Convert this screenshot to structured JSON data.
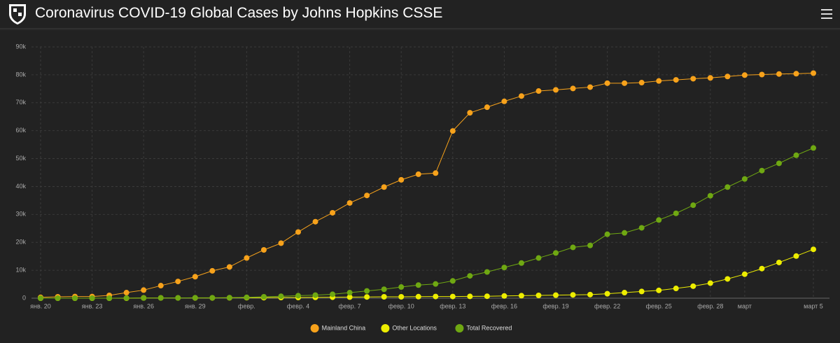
{
  "header": {
    "title": "Coronavirus COVID-19 Global Cases by Johns Hopkins CSSE"
  },
  "chart_data": {
    "type": "line",
    "categories": [
      "янв. 20",
      null,
      null,
      "янв. 23",
      null,
      null,
      "янв. 26",
      null,
      null,
      "янв. 29",
      null,
      null,
      "февр.",
      null,
      null,
      "февр. 4",
      null,
      null,
      "февр. 7",
      null,
      null,
      "февр. 10",
      null,
      null,
      "февр. 13",
      null,
      null,
      "февр. 16",
      null,
      null,
      "февр. 19",
      null,
      null,
      "февр. 22",
      null,
      null,
      "февр. 25",
      null,
      null,
      "февр. 28",
      null,
      "март",
      null,
      null,
      null,
      "март 5"
    ],
    "series": [
      {
        "name": "Mainland China",
        "color": "#f7a21b",
        "values": [
          300,
          500,
          600,
          600,
          1000,
          2000,
          2900,
          4500,
          6000,
          7700,
          9800,
          11200,
          14400,
          17300,
          19700,
          23700,
          27400,
          30600,
          34100,
          36800,
          39800,
          42400,
          44400,
          44800,
          59900,
          66400,
          68400,
          70500,
          72400,
          74200,
          74600,
          75100,
          75600,
          77000,
          77000,
          77200,
          77800,
          78200,
          78600,
          78900,
          79400,
          79900,
          80100,
          80300,
          80400,
          80600
        ]
      },
      {
        "name": "Other Locations",
        "color": "#eded00",
        "values": [
          0,
          0,
          0,
          0,
          0,
          0,
          100,
          100,
          100,
          100,
          100,
          150,
          200,
          200,
          250,
          250,
          300,
          350,
          400,
          450,
          500,
          500,
          550,
          600,
          600,
          650,
          700,
          800,
          900,
          1000,
          1100,
          1200,
          1300,
          1600,
          2000,
          2400,
          2800,
          3500,
          4300,
          5400,
          6900,
          8600,
          10600,
          12800,
          15100,
          17500
        ]
      },
      {
        "name": "Total Recovered",
        "color": "#6fa812",
        "values": [
          0,
          0,
          0,
          0,
          0,
          50,
          50,
          100,
          100,
          150,
          150,
          200,
          300,
          500,
          700,
          900,
          1100,
          1400,
          2000,
          2600,
          3200,
          4000,
          4700,
          5100,
          6200,
          8000,
          9400,
          11000,
          12600,
          14400,
          16200,
          18200,
          18900,
          22900,
          23400,
          25200,
          28000,
          30400,
          33300,
          36700,
          39800,
          42700,
          45700,
          48300,
          51200,
          53800
        ]
      }
    ],
    "ylim": [
      0,
      90000
    ],
    "yticks": [
      0,
      {
        "value": 10000,
        "label": "10k"
      },
      {
        "value": 20000,
        "label": "20k"
      },
      {
        "value": 30000,
        "label": "30k"
      },
      {
        "value": 40000,
        "label": "40k"
      },
      {
        "value": 50000,
        "label": "50k"
      },
      {
        "value": 60000,
        "label": "60k"
      },
      {
        "value": 70000,
        "label": "70k"
      },
      {
        "value": 80000,
        "label": "80k"
      },
      {
        "value": 90000,
        "label": "90k"
      }
    ],
    "grid": true,
    "legend": "bottom"
  }
}
